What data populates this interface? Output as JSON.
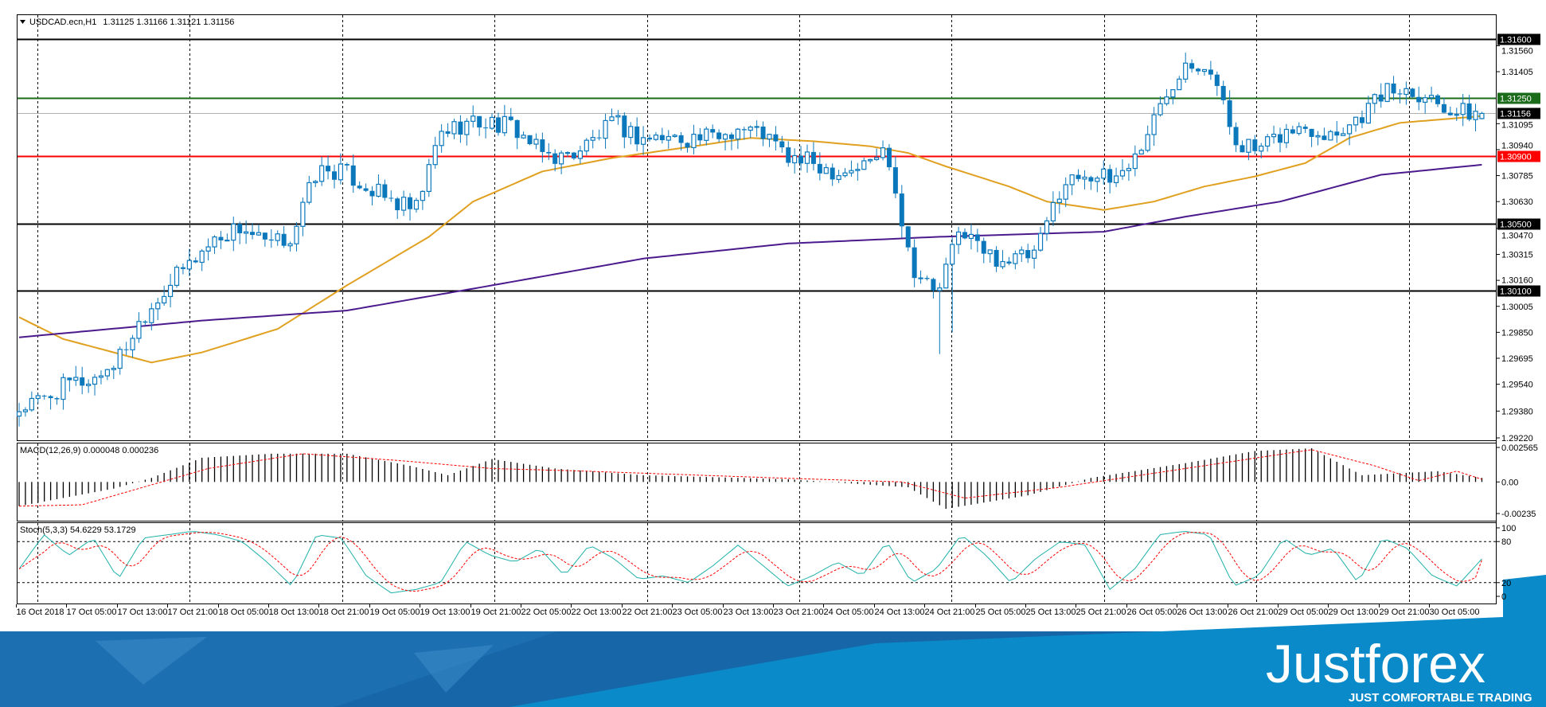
{
  "header": {
    "symbol": "USDCAD.ecn,H1",
    "ohlc": "1.31125 1.31166 1.31121 1.31156"
  },
  "colors": {
    "bull": "#0b78bc",
    "bear": "#0b78bc",
    "ma_fast": "#e0a020",
    "ma_slow": "#4b1a8c",
    "macd_signal": "#ff0000",
    "stoch_main": "#20b2aa",
    "stoch_signal": "#ff0000",
    "banner_dark": "#1767a8",
    "banner_light": "#0a8ac9"
  },
  "chart_data": {
    "type": "candlestick",
    "title": "USDCAD.ecn,H1",
    "last_bar": {
      "open": 1.31125,
      "high": 1.31166,
      "low": 1.31121,
      "close": 1.31156
    },
    "bars_total": 233,
    "close_waypoints": [
      1.2939,
      1.2945,
      1.2954,
      1.2957,
      1.2969,
      1.2995,
      1.3013,
      1.3028,
      1.3042,
      1.3048,
      1.3036,
      1.3042,
      1.3081,
      1.3081,
      1.3072,
      1.3063,
      1.3057,
      1.3104,
      1.311,
      1.311,
      1.3107,
      1.3092,
      1.3089,
      1.3098,
      1.311,
      1.3101,
      1.3101,
      1.3101,
      1.3101,
      1.3107,
      1.3104,
      1.3089,
      1.3086,
      1.3081,
      1.3084,
      1.3095,
      1.3025,
      1.3007,
      1.3048,
      1.3031,
      1.3028,
      1.3031,
      1.3072,
      1.3081,
      1.3075,
      1.3089,
      1.3119,
      1.3148,
      1.3145,
      1.3101,
      1.3092,
      1.3104,
      1.3107,
      1.3104,
      1.3113,
      1.3128,
      1.3131,
      1.3125,
      1.3116,
      1.31156
    ],
    "ma_fast": {
      "bars": [
        0,
        7,
        21,
        29,
        41,
        52,
        65,
        72,
        83,
        94,
        107,
        116,
        126,
        135,
        141,
        147,
        157,
        163,
        172,
        180,
        188,
        196,
        204,
        211,
        219,
        232
      ],
      "values": [
        1.2994,
        1.2981,
        1.2967,
        1.2973,
        1.2987,
        1.3013,
        1.3042,
        1.3063,
        1.3081,
        1.3089,
        1.3096,
        1.3101,
        1.3099,
        1.3096,
        1.3092,
        1.3084,
        1.3072,
        1.3063,
        1.3058,
        1.3063,
        1.3072,
        1.3078,
        1.3086,
        1.3101,
        1.311,
        1.3114
      ]
    },
    "ma_slow": {
      "bars": [
        0,
        29,
        52,
        75,
        99,
        122,
        146,
        172,
        185,
        200,
        216,
        232
      ],
      "values": [
        1.2982,
        1.2992,
        1.2998,
        1.3013,
        1.3029,
        1.3038,
        1.3042,
        1.3045,
        1.3054,
        1.3063,
        1.3079,
        1.3085
      ]
    },
    "levels": [
      {
        "price": 1.316,
        "label": "1.31600",
        "color": "#000000"
      },
      {
        "price": 1.3125,
        "label": "1.31250",
        "color": "#1a6b1a"
      },
      {
        "price": 1.309,
        "label": "1.30900",
        "color": "#ff0000"
      },
      {
        "price": 1.305,
        "label": "1.30500",
        "color": "#000000"
      },
      {
        "price": 1.301,
        "label": "1.30100",
        "color": "#000000"
      }
    ],
    "current_price": {
      "price": 1.31156,
      "label": "1.31156"
    },
    "y_range": [
      1.2922,
      1.316
    ],
    "y_ticks": [
      "1.31560",
      "1.31405",
      "1.31095",
      "1.30940",
      "1.30785",
      "1.30630",
      "1.30470",
      "1.30315",
      "1.30160",
      "1.30005",
      "1.29850",
      "1.29695",
      "1.29540",
      "1.29380",
      "1.29220"
    ],
    "x_ticks": [
      "16 Oct 2018",
      "17 Oct 05:00",
      "17 Oct 13:00",
      "17 Oct 21:00",
      "18 Oct 05:00",
      "18 Oct 13:00",
      "18 Oct 21:00",
      "19 Oct 05:00",
      "19 Oct 13:00",
      "19 Oct 21:00",
      "22 Oct 05:00",
      "22 Oct 13:00",
      "22 Oct 21:00",
      "23 Oct 05:00",
      "23 Oct 13:00",
      "23 Oct 21:00",
      "24 Oct 05:00",
      "24 Oct 13:00",
      "24 Oct 21:00",
      "25 Oct 05:00",
      "25 Oct 13:00",
      "25 Oct 21:00",
      "26 Oct 05:00",
      "26 Oct 13:00",
      "26 Oct 21:00",
      "29 Oct 05:00",
      "29 Oct 13:00",
      "29 Oct 21:00",
      "30 Oct 05:00"
    ],
    "macd": {
      "label": "MACD(12,26,9) 0.000048 0.000236",
      "y_ticks": [
        "0.002565",
        "0.00",
        "-0.00235"
      ],
      "y_range": [
        -0.00235,
        0.002565
      ],
      "hist": {
        "bars": [
          0,
          15,
          21,
          29,
          40,
          52,
          62,
          68,
          75,
          85,
          99,
          122,
          141,
          147,
          160,
          170,
          185,
          196,
          205,
          213,
          225,
          232
        ],
        "values": [
          -0.0018,
          -0.0005,
          0.0003,
          0.0018,
          0.0021,
          0.0021,
          0.0012,
          0.0005,
          0.0017,
          0.001,
          0.0005,
          0.0002,
          -0.0004,
          -0.002,
          -0.001,
          0.0003,
          0.0014,
          0.0023,
          0.0025,
          0.0005,
          0.0008,
          0.0003
        ]
      },
      "signal": {
        "bars": [
          0,
          10,
          30,
          45,
          60,
          75,
          90,
          120,
          140,
          150,
          165,
          185,
          205,
          215,
          222,
          228,
          232
        ],
        "values": [
          -0.0018,
          -0.0017,
          0.001,
          0.0021,
          0.0016,
          0.001,
          0.0008,
          0.0003,
          0.0,
          -0.0012,
          -0.0004,
          0.001,
          0.0024,
          0.0012,
          0.0001,
          0.0008,
          0.0002
        ]
      }
    },
    "stoch": {
      "label": "Stoch(5,3,3) 54.6229 53.1729",
      "y_ticks": [
        "100",
        "80",
        "20",
        "0"
      ],
      "levels": [
        80,
        20
      ],
      "main_waypoints": [
        40,
        90,
        60,
        85,
        25,
        85,
        90,
        95,
        90,
        80,
        50,
        15,
        90,
        85,
        30,
        5,
        10,
        20,
        80,
        60,
        50,
        70,
        30,
        75,
        55,
        25,
        30,
        20,
        45,
        75,
        45,
        15,
        30,
        50,
        30,
        80,
        20,
        40,
        90,
        60,
        20,
        55,
        80,
        75,
        10,
        40,
        90,
        95,
        90,
        15,
        30,
        85,
        60,
        70,
        20,
        85,
        70,
        30,
        15,
        54.6229
      ],
      "signal_last": 53.1729
    }
  },
  "banner": {
    "logo": "Justforex",
    "tagline": "JUST COMFORTABLE TRADING"
  }
}
